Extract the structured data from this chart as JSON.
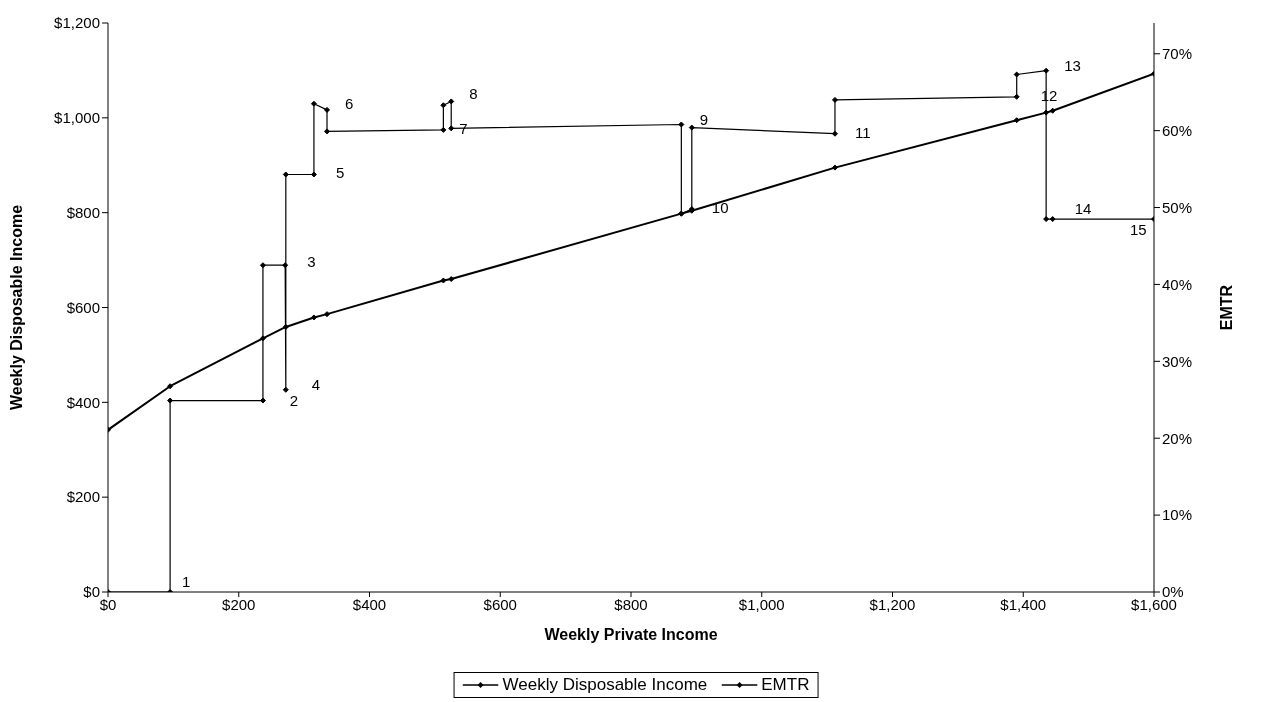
{
  "chart_data": {
    "type": "line",
    "xlabel": "Weekly Private Income",
    "ylabel": "Weekly Disposable Income",
    "y2label": "EMTR",
    "series": [
      {
        "name": "Weekly Disposable Income",
        "color": "#000000",
        "x": [
          0,
          95,
          237,
          272,
          315,
          335,
          513,
          525,
          877,
          893,
          1112,
          1390,
          1435,
          1445,
          1600
        ],
        "values": [
          342,
          434,
          535,
          559,
          579,
          586,
          657,
          660,
          798,
          804,
          895,
          995,
          1011,
          1015,
          1093
        ]
      },
      {
        "name": "EMTR",
        "color": "#000000",
        "axis": "y2",
        "x": [
          0,
          95,
          95,
          237,
          237,
          271,
          272,
          272,
          315,
          315,
          335,
          335,
          513,
          513,
          525,
          525,
          877,
          877,
          893,
          893,
          1112,
          1112,
          1390,
          1390,
          1435,
          1435,
          1445,
          1600
        ],
        "values": [
          0,
          0,
          24.9,
          24.9,
          42.5,
          42.5,
          26.3,
          54.3,
          54.3,
          63.5,
          62.7,
          59.9,
          60.1,
          63.3,
          63.8,
          60.3,
          60.8,
          49.2,
          49.8,
          60.4,
          59.6,
          64.0,
          64.4,
          67.3,
          67.8,
          48.5,
          48.5,
          48.5
        ]
      }
    ],
    "xlim": [
      0,
      1600
    ],
    "xticks": [
      {
        "value": 0,
        "label": "$0"
      },
      {
        "value": 200,
        "label": "$200"
      },
      {
        "value": 400,
        "label": "$400"
      },
      {
        "value": 600,
        "label": "$600"
      },
      {
        "value": 800,
        "label": "$800"
      },
      {
        "value": 1000,
        "label": "$1,000"
      },
      {
        "value": 1200,
        "label": "$1,200"
      },
      {
        "value": 1400,
        "label": "$1,400"
      },
      {
        "value": 1600,
        "label": "$1,600"
      }
    ],
    "ylim": [
      0,
      1200
    ],
    "yticks": [
      {
        "value": 0,
        "label": "$0"
      },
      {
        "value": 200,
        "label": "$200"
      },
      {
        "value": 400,
        "label": "$400"
      },
      {
        "value": 600,
        "label": "$600"
      },
      {
        "value": 800,
        "label": "$800"
      },
      {
        "value": 1000,
        "label": "$1,000"
      },
      {
        "value": 1200,
        "label": "$1,200"
      }
    ],
    "y2lim": [
      0,
      74
    ],
    "y2ticks": [
      {
        "value": 0,
        "label": "0%"
      },
      {
        "value": 10,
        "label": "10%"
      },
      {
        "value": 20,
        "label": "20%"
      },
      {
        "value": 30,
        "label": "30%"
      },
      {
        "value": 40,
        "label": "40%"
      },
      {
        "value": 50,
        "label": "50%"
      },
      {
        "value": 60,
        "label": "60%"
      },
      {
        "value": 70,
        "label": "70%"
      }
    ],
    "annotations": [
      "1",
      "2",
      "3",
      "4",
      "5",
      "6",
      "7",
      "8",
      "9",
      "10",
      "11",
      "12",
      "13",
      "14",
      "15"
    ],
    "grid": false,
    "legend": "bottom",
    "marker": "diamond",
    "line_style": "solid"
  }
}
